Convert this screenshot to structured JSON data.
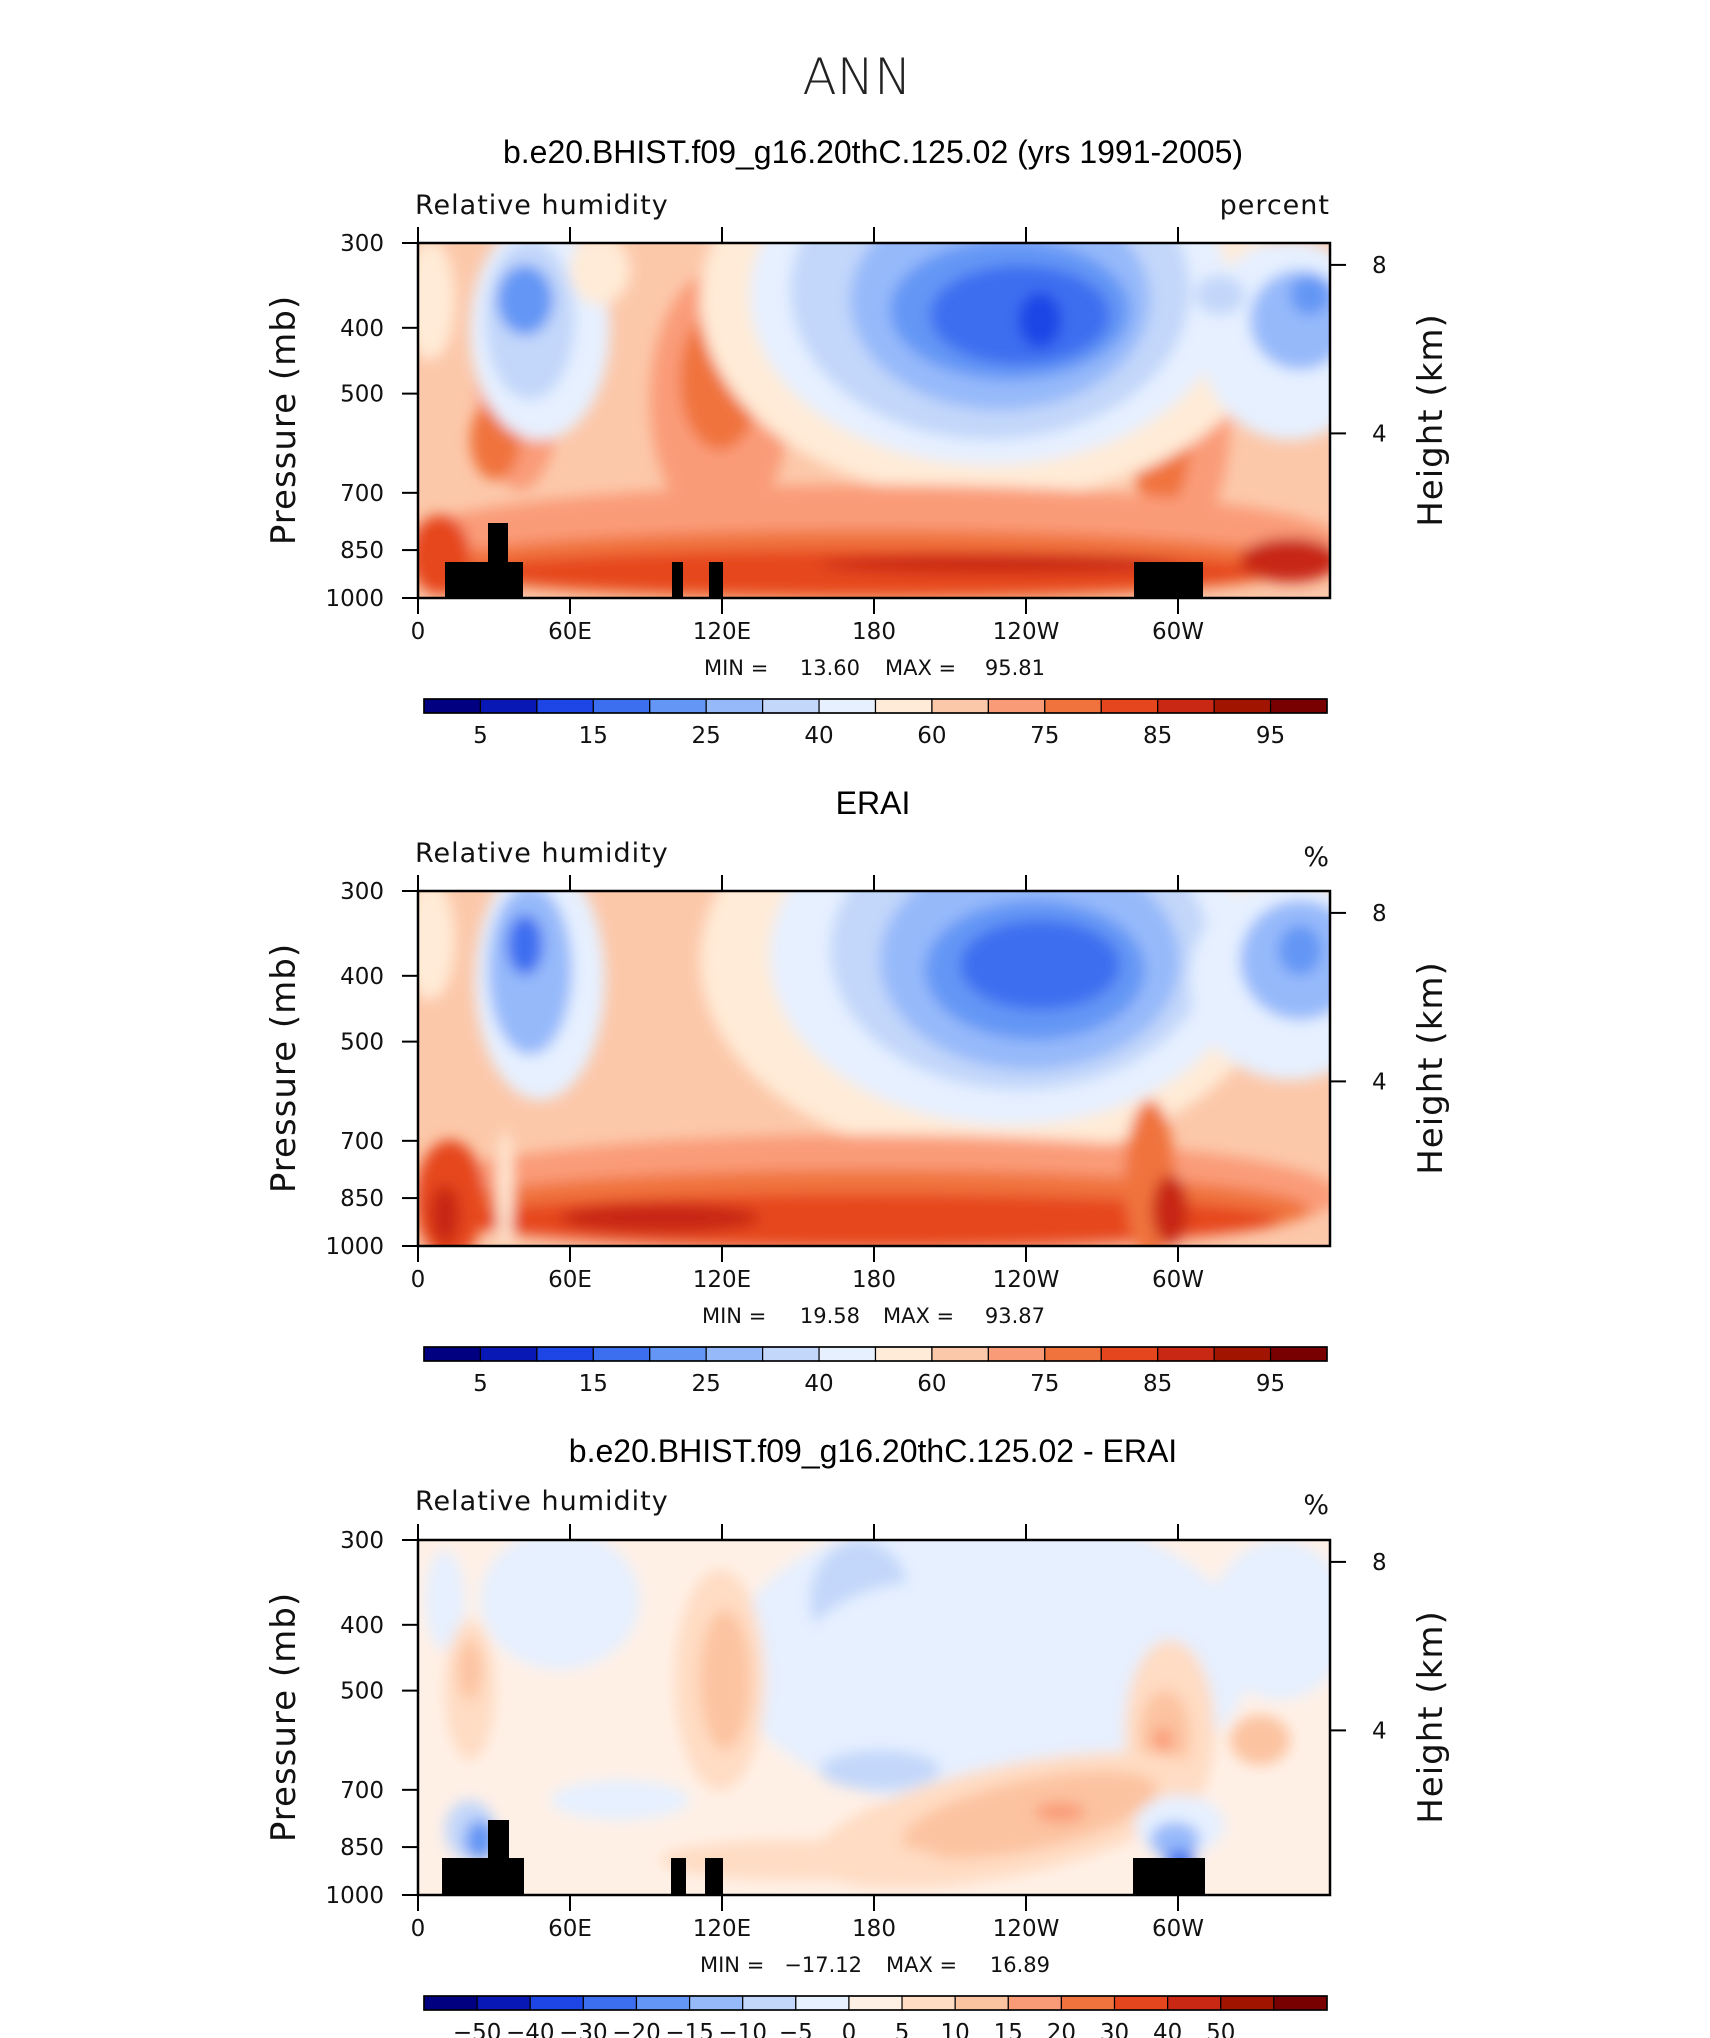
{
  "figure": {
    "season": "ANN",
    "colors": {
      "abs": [
        "#000080",
        "#0818b4",
        "#1e46e6",
        "#3c6ef0",
        "#6496f5",
        "#96b9fa",
        "#c3d7fa",
        "#e6f0ff",
        "#ffebd7",
        "#fcc8aa",
        "#fa9b78",
        "#f0733e",
        "#e6461e",
        "#c82814",
        "#a01400",
        "#780000"
      ],
      "diff": [
        "#000080",
        "#0818b4",
        "#1e46e6",
        "#3c6ef0",
        "#6496f5",
        "#96b9fa",
        "#c3d7fa",
        "#e6f0ff",
        "#fff0e6",
        "#ffdcc3",
        "#fcc3a0",
        "#fa9b78",
        "#f0733e",
        "#e6461e",
        "#c82814",
        "#a01400",
        "#780000"
      ]
    }
  },
  "chart_data": [
    {
      "type": "heatmap",
      "title": "b.e20.BHIST.f09_g16.20thC.125.02 (yrs 1991-2005)",
      "variable": "Relative humidity",
      "units": "percent",
      "ylabel": "Pressure (mb)",
      "ylabel_right": "Height (km)",
      "xticks": [
        "0",
        "60E",
        "120E",
        "180",
        "120W",
        "60W"
      ],
      "yticks": [
        "300",
        "400",
        "500",
        "700",
        "850",
        "1000"
      ],
      "yticks_right": [
        "8",
        "4"
      ],
      "ylim": [
        1000,
        300
      ],
      "min": "13.60",
      "max": "95.81",
      "min_label": "MIN =",
      "max_label": "MAX =",
      "colorbar_labels": [
        "5",
        "15",
        "25",
        "40",
        "60",
        "75",
        "85",
        "95"
      ],
      "contour_levels": [
        5,
        10,
        15,
        20,
        25,
        30,
        40,
        50,
        60,
        65,
        75,
        80,
        85,
        90,
        95
      ],
      "features": [
        {
          "name": "dry-zone-indian",
          "lon": 45,
          "p": 420,
          "value": 25
        },
        {
          "name": "dry-zone-pacific",
          "lon": 245,
          "p": 460,
          "value": 18
        },
        {
          "name": "dry-zone-atlantic",
          "lon": 350,
          "p": 420,
          "value": 30
        },
        {
          "name": "moist-boundary-layer",
          "p": 925,
          "value": 90
        }
      ]
    },
    {
      "type": "heatmap",
      "title": "ERAI",
      "variable": "Relative humidity",
      "units": "%",
      "ylabel": "Pressure (mb)",
      "ylabel_right": "Height (km)",
      "xticks": [
        "0",
        "60E",
        "120E",
        "180",
        "120W",
        "60W"
      ],
      "yticks": [
        "300",
        "400",
        "500",
        "700",
        "850",
        "1000"
      ],
      "yticks_right": [
        "8",
        "4"
      ],
      "ylim": [
        1000,
        300
      ],
      "min": "19.58",
      "max": "93.87",
      "min_label": "MIN =",
      "max_label": "MAX =",
      "colorbar_labels": [
        "5",
        "15",
        "25",
        "40",
        "60",
        "75",
        "85",
        "95"
      ],
      "contour_levels": [
        5,
        10,
        15,
        20,
        25,
        30,
        40,
        50,
        60,
        65,
        75,
        80,
        85,
        90,
        95
      ],
      "features": [
        {
          "name": "dry-zone-indian",
          "lon": 45,
          "p": 420,
          "value": 28
        },
        {
          "name": "dry-zone-pacific",
          "lon": 245,
          "p": 430,
          "value": 24
        },
        {
          "name": "dry-zone-atlantic",
          "lon": 345,
          "p": 420,
          "value": 32
        },
        {
          "name": "moist-boundary-layer",
          "p": 925,
          "value": 88
        }
      ]
    },
    {
      "type": "heatmap",
      "title": "b.e20.BHIST.f09_g16.20thC.125.02 - ERAI",
      "variable": "Relative humidity",
      "units": "%",
      "ylabel": "Pressure (mb)",
      "ylabel_right": "Height (km)",
      "xticks": [
        "0",
        "60E",
        "120E",
        "180",
        "120W",
        "60W"
      ],
      "yticks": [
        "300",
        "400",
        "500",
        "700",
        "850",
        "1000"
      ],
      "yticks_right": [
        "8",
        "4"
      ],
      "ylim": [
        1000,
        300
      ],
      "min": "−17.12",
      "max": "16.89",
      "min_label": "MIN =",
      "max_label": "MAX =",
      "colorbar_labels": [
        "−50",
        "−40",
        "−30",
        "−20",
        "−15",
        "−10",
        "−5",
        "0",
        "5",
        "10",
        "15",
        "20",
        "30",
        "40",
        "50"
      ],
      "contour_levels": [
        -50,
        -40,
        -30,
        -20,
        -15,
        -10,
        -5,
        0,
        5,
        10,
        15,
        20,
        30,
        40,
        50
      ],
      "features": [
        {
          "name": "negative-upper-pacific",
          "lon": 200,
          "p": 450,
          "value": -8
        },
        {
          "name": "positive-east-pacific-low",
          "lon": 250,
          "p": 820,
          "value": 13
        },
        {
          "name": "positive-120E-mid",
          "lon": 120,
          "p": 560,
          "value": 8
        }
      ]
    }
  ]
}
